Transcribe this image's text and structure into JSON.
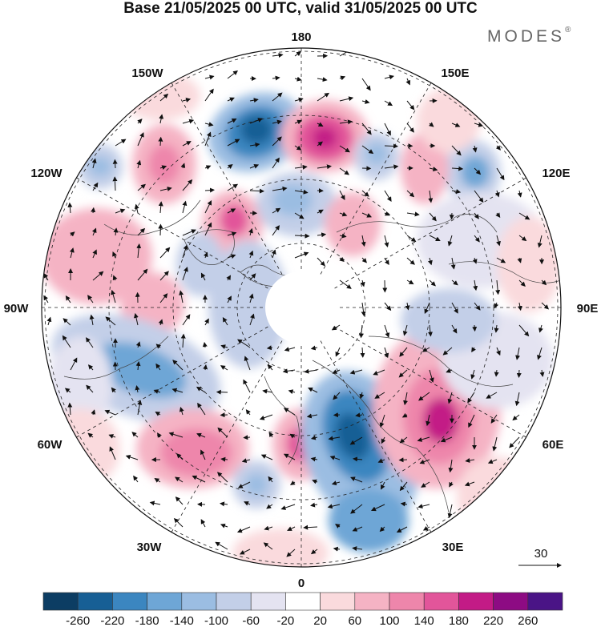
{
  "title": "Base 21/05/2025 00 UTC, valid 31/05/2025 00 UTC",
  "brand": {
    "name": "MODES",
    "mark": "®"
  },
  "map": {
    "projection": "north-polar-stereographic",
    "longitude_labels": {
      "top": "180",
      "bottom": "0",
      "left": "90W",
      "right": "90E",
      "upper_left": "150W",
      "upper_right": "150E",
      "mid_left_upper": "120W",
      "mid_right_upper": "120E",
      "mid_left_lower": "60W",
      "mid_right_lower": "60E",
      "lower_left": "30W",
      "lower_right": "30E"
    },
    "vector_reference": {
      "value": "30"
    },
    "colors": {
      "negative_max": "#08306b",
      "positive_max": "#4a1486",
      "neutral": "#ffffff"
    }
  },
  "colorbar": {
    "ticks": [
      "-260",
      "-220",
      "-180",
      "-140",
      "-100",
      "-60",
      "-20",
      "20",
      "60",
      "100",
      "140",
      "180",
      "220",
      "260"
    ],
    "colors": [
      "#0c3d63",
      "#175f95",
      "#3b86c0",
      "#6ea6d6",
      "#9bbde2",
      "#c3cfe8",
      "#e4e3f1",
      "#ffffff",
      "#fadadd",
      "#f5b3c4",
      "#ee86ab",
      "#e2559a",
      "#c31b86",
      "#8d0b83",
      "#4a1486"
    ]
  }
}
